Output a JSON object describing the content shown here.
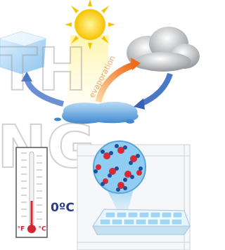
{
  "diagram": {
    "evaporation_label": "evaporation",
    "temperature_label": "0ºC",
    "fahrenheit_label": "°F",
    "celsius_label": "°C",
    "watermark": [
      "TH",
      "NG"
    ]
  }
}
